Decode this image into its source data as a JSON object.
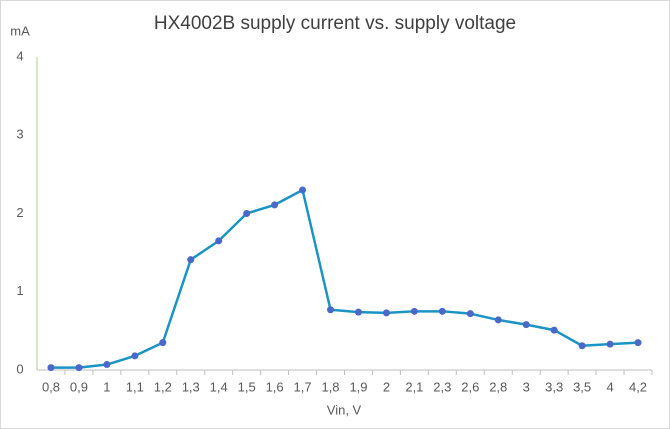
{
  "chart_data": {
    "type": "line",
    "title": "HX4002B supply current vs. supply voltage",
    "y_label": "mA",
    "x_label": "Vin, V",
    "categories": [
      "0,8",
      "0,9",
      "1",
      "1,1",
      "1,2",
      "1,3",
      "1,4",
      "1,5",
      "1,6",
      "1,7",
      "1,8",
      "1,9",
      "2",
      "2,1",
      "2,3",
      "2,6",
      "2,8",
      "3",
      "3,3",
      "3,5",
      "4",
      "4,2"
    ],
    "series": [
      {
        "color": "#1b94c4",
        "marker_color": "#4a68c8",
        "values": [
          0.03,
          0.03,
          0.07,
          0.18,
          0.35,
          1.41,
          1.65,
          2.0,
          2.11,
          2.3,
          0.77,
          0.74,
          0.73,
          0.75,
          0.75,
          0.72,
          0.64,
          0.58,
          0.51,
          0.31,
          0.33,
          0.35
        ]
      }
    ],
    "ylim": [
      0,
      4
    ],
    "yticks": [
      0,
      1,
      2,
      3,
      4
    ]
  }
}
